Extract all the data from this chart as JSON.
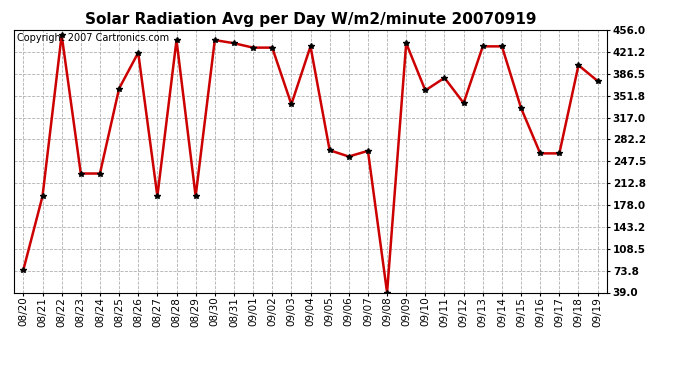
{
  "title": "Solar Radiation Avg per Day W/m2/minute 20070919",
  "copyright": "Copyright 2007 Cartronics.com",
  "x_labels": [
    "08/20",
    "08/21",
    "08/22",
    "08/23",
    "08/24",
    "08/25",
    "08/26",
    "08/27",
    "08/28",
    "08/29",
    "08/30",
    "08/31",
    "09/01",
    "09/02",
    "09/03",
    "09/04",
    "09/05",
    "09/06",
    "09/07",
    "09/08",
    "09/09",
    "09/10",
    "09/11",
    "09/12",
    "09/13",
    "09/14",
    "09/15",
    "09/16",
    "09/17",
    "09/18",
    "09/19"
  ],
  "y_values": [
    75,
    192,
    448,
    228,
    228,
    363,
    420,
    192,
    440,
    192,
    440,
    435,
    428,
    428,
    338,
    430,
    265,
    255,
    264,
    39,
    435,
    360,
    380,
    340,
    430,
    430,
    332,
    260,
    260,
    400,
    375
  ],
  "y_ticks": [
    39.0,
    73.8,
    108.5,
    143.2,
    178.0,
    212.8,
    247.5,
    282.2,
    317.0,
    351.8,
    386.5,
    421.2,
    456.0
  ],
  "line_color": "#cc0000",
  "marker": "*",
  "marker_size": 4,
  "background_color": "#ffffff",
  "plot_bg_color": "#ffffff",
  "grid_color": "#b0b0b0",
  "title_fontsize": 11,
  "copyright_fontsize": 7,
  "tick_fontsize": 7.5,
  "ylim_min": 39.0,
  "ylim_max": 456.0
}
